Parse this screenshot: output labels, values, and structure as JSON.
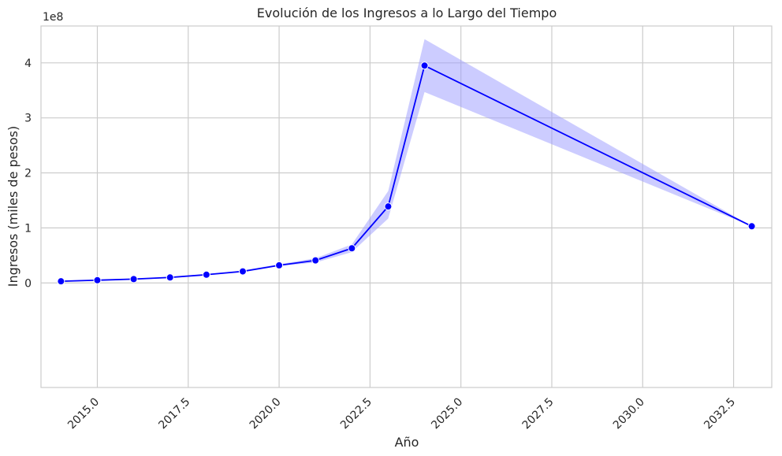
{
  "chart_data": {
    "type": "line",
    "title": "Evolución de los Ingresos a lo Largo del Tiempo",
    "xlabel": "Año",
    "ylabel": "Ingresos (miles de pesos)",
    "y_offset_label": "1e8",
    "xlim": [
      2013.45,
      2033.55
    ],
    "ylim": [
      -1.9,
      4.67
    ],
    "x_ticks": [
      2015.0,
      2017.5,
      2020.0,
      2022.5,
      2025.0,
      2027.5,
      2030.0,
      2032.5
    ],
    "x_tick_labels": [
      "2015.0",
      "2017.5",
      "2020.0",
      "2022.5",
      "2025.0",
      "2027.5",
      "2030.0",
      "2032.5"
    ],
    "y_ticks": [
      0,
      1,
      2,
      3,
      4
    ],
    "y_tick_labels": [
      "0",
      "1",
      "2",
      "3",
      "4"
    ],
    "grid": true,
    "legend": "none",
    "colors": {
      "line": "#0000ff",
      "band": "#9999ff",
      "marker_edge": "#ffffff",
      "grid": "#cccccc"
    },
    "series": [
      {
        "x": [
          2014,
          2015,
          2016,
          2017,
          2018,
          2019,
          2020,
          2021,
          2022,
          2023,
          2024,
          2033
        ],
        "y": [
          0.03,
          0.05,
          0.07,
          0.1,
          0.15,
          0.21,
          0.32,
          0.41,
          0.63,
          1.39,
          3.95,
          1.03
        ],
        "ci_low": [
          0.02,
          0.04,
          0.06,
          0.09,
          0.14,
          0.2,
          0.31,
          0.37,
          0.56,
          1.17,
          3.47,
          1.03
        ],
        "ci_high": [
          0.04,
          0.06,
          0.08,
          0.11,
          0.16,
          0.23,
          0.34,
          0.45,
          0.7,
          1.67,
          4.43,
          1.03
        ]
      }
    ]
  }
}
